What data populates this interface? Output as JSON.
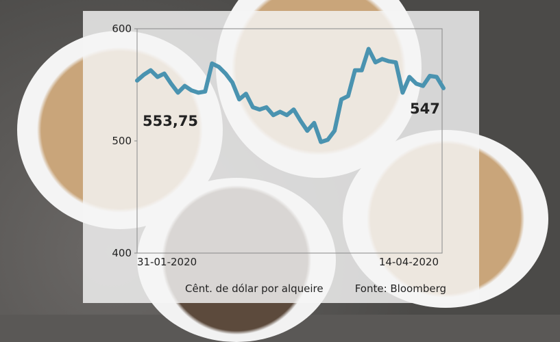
{
  "chart_data": {
    "type": "line",
    "title": "",
    "xlabel": "",
    "ylabel": "",
    "ylim": [
      400,
      600
    ],
    "yticks": [
      "600",
      "500",
      "400"
    ],
    "xticks": [
      "31-01-2020",
      "14-04-2020"
    ],
    "series": [
      {
        "color": "#4a93b0",
        "values": [
          553.75,
          559,
          563,
          557,
          560,
          551,
          543,
          549,
          545,
          543,
          544,
          569,
          566,
          560,
          552,
          537,
          542,
          530,
          528,
          530,
          523,
          526,
          523,
          528,
          518,
          509,
          516,
          499,
          501,
          509,
          537,
          540,
          563,
          563,
          582,
          570,
          573,
          571,
          570,
          543,
          557,
          551,
          549,
          558,
          557,
          547
        ]
      }
    ],
    "annotations": {
      "start": "553,75",
      "end": "547"
    },
    "unit_note": "Cênt. de dólar por alqueire",
    "source": "Fonte: Bloomberg",
    "grid": false
  }
}
